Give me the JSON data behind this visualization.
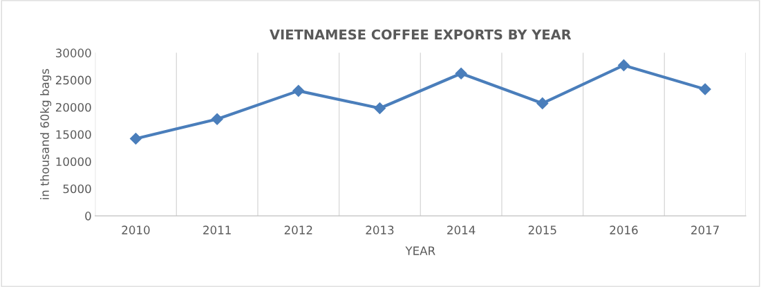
{
  "chart_data": {
    "type": "line",
    "title": "VIETNAMESE COFFEE EXPORTS BY YEAR",
    "xlabel": "YEAR",
    "ylabel": "in thousand 60kg bags",
    "categories": [
      "2010",
      "2011",
      "2012",
      "2013",
      "2014",
      "2015",
      "2016",
      "2017"
    ],
    "series": [
      {
        "color": "#4a7ebb",
        "values": [
          14200,
          17800,
          23000,
          19800,
          26200,
          20700,
          27700,
          23300
        ]
      }
    ],
    "ylim": [
      0,
      30000
    ],
    "yticks": [
      0,
      5000,
      10000,
      15000,
      20000,
      25000,
      30000
    ],
    "grid": "x",
    "marker": "diamond",
    "line_style": "solid"
  }
}
